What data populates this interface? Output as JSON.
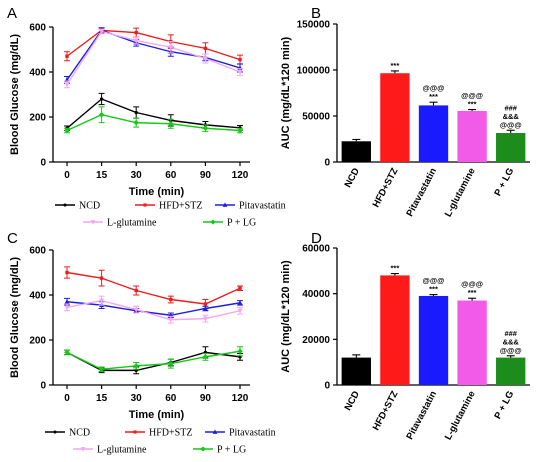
{
  "chart_data": [
    {
      "panel": "A",
      "type": "line",
      "xlabel": "Time (min)",
      "ylabel": "Blood Glucose (mg/dL)",
      "x": [
        0,
        15,
        30,
        60,
        90,
        120
      ],
      "ylim": [
        0,
        600
      ],
      "yticks": [
        0,
        200,
        400,
        600
      ],
      "series": [
        {
          "name": "NCD",
          "color": "#000000",
          "values": [
            150,
            280,
            220,
            185,
            165,
            152
          ],
          "errors": [
            10,
            25,
            25,
            25,
            15,
            10
          ]
        },
        {
          "name": "HFD+STZ",
          "color": "#ee1c1c",
          "values": [
            470,
            585,
            575,
            535,
            505,
            455
          ],
          "errors": [
            20,
            10,
            20,
            30,
            25,
            20
          ]
        },
        {
          "name": "Pitavastatin",
          "color": "#1f1fdf",
          "values": [
            365,
            585,
            530,
            490,
            465,
            418
          ],
          "errors": [
            15,
            12,
            15,
            20,
            15,
            18
          ]
        },
        {
          "name": "L-glutamine",
          "color": "#f4a6f0",
          "values": [
            345,
            580,
            540,
            510,
            460,
            400
          ],
          "errors": [
            15,
            10,
            15,
            25,
            20,
            15
          ]
        },
        {
          "name": "P + LG",
          "color": "#16c916",
          "values": [
            140,
            210,
            175,
            170,
            150,
            140
          ],
          "errors": [
            10,
            35,
            20,
            20,
            15,
            10
          ]
        }
      ]
    },
    {
      "panel": "B",
      "type": "bar",
      "ylabel": "AUC (mg/dL*120 min)",
      "ylim": [
        0,
        150000
      ],
      "yticks": [
        0,
        50000,
        100000,
        150000
      ],
      "categories": [
        "NCD",
        "HFD+STZ",
        "Pitavastatin",
        "L-glutamine",
        "P + LG"
      ],
      "colors": [
        "#000000",
        "#ff1a1a",
        "#1a1aff",
        "#f25ae8",
        "#1c8c1c"
      ],
      "values": [
        22500,
        96500,
        61500,
        55500,
        31500
      ],
      "errors": [
        2000,
        2500,
        3500,
        1500,
        3000
      ],
      "annotations": [
        [],
        [
          "***"
        ],
        [
          "***",
          "@@@"
        ],
        [
          "***",
          "@@@"
        ],
        [
          "@@@",
          "&&&",
          "###"
        ]
      ]
    },
    {
      "panel": "C",
      "type": "line",
      "xlabel": "Time (min)",
      "ylabel": "Blood Glucose (mg/dL)",
      "x": [
        0,
        15,
        30,
        60,
        90,
        120
      ],
      "ylim": [
        0,
        600
      ],
      "yticks": [
        0,
        200,
        400,
        600
      ],
      "series": [
        {
          "name": "NCD",
          "color": "#000000",
          "values": [
            145,
            65,
            65,
            100,
            145,
            125
          ],
          "errors": [
            10,
            10,
            15,
            15,
            25,
            15
          ]
        },
        {
          "name": "HFD+STZ",
          "color": "#ee1c1c",
          "values": [
            500,
            475,
            420,
            380,
            360,
            430
          ],
          "errors": [
            25,
            35,
            20,
            15,
            20,
            10
          ]
        },
        {
          "name": "Pitavastatin",
          "color": "#1f1fdf",
          "values": [
            370,
            355,
            330,
            310,
            340,
            365
          ],
          "errors": [
            15,
            15,
            10,
            10,
            10,
            10
          ]
        },
        {
          "name": "L-glutamine",
          "color": "#f4a6f0",
          "values": [
            345,
            375,
            335,
            290,
            295,
            330
          ],
          "errors": [
            15,
            20,
            15,
            15,
            15,
            15
          ]
        },
        {
          "name": "P + LG",
          "color": "#16c916",
          "values": [
            145,
            70,
            85,
            95,
            125,
            150
          ],
          "errors": [
            10,
            10,
            15,
            20,
            15,
            20
          ]
        }
      ]
    },
    {
      "panel": "D",
      "type": "bar",
      "ylabel": "AUC (mg/dL*120 min)",
      "ylim": [
        0,
        60000
      ],
      "yticks": [
        0,
        20000,
        40000,
        60000
      ],
      "categories": [
        "NCD",
        "HFD+STZ",
        "Pitavastatin",
        "L-glutamine",
        "P + LG"
      ],
      "colors": [
        "#000000",
        "#ff1a1a",
        "#1a1aff",
        "#f25ae8",
        "#1c8c1c"
      ],
      "values": [
        12000,
        48000,
        39000,
        37000,
        12000
      ],
      "errors": [
        1200,
        800,
        600,
        1000,
        800
      ],
      "annotations": [
        [],
        [
          "***"
        ],
        [
          "***",
          "@@@"
        ],
        [
          "***",
          "@@@"
        ],
        [
          "@@@",
          "&&&",
          "###"
        ]
      ]
    }
  ]
}
